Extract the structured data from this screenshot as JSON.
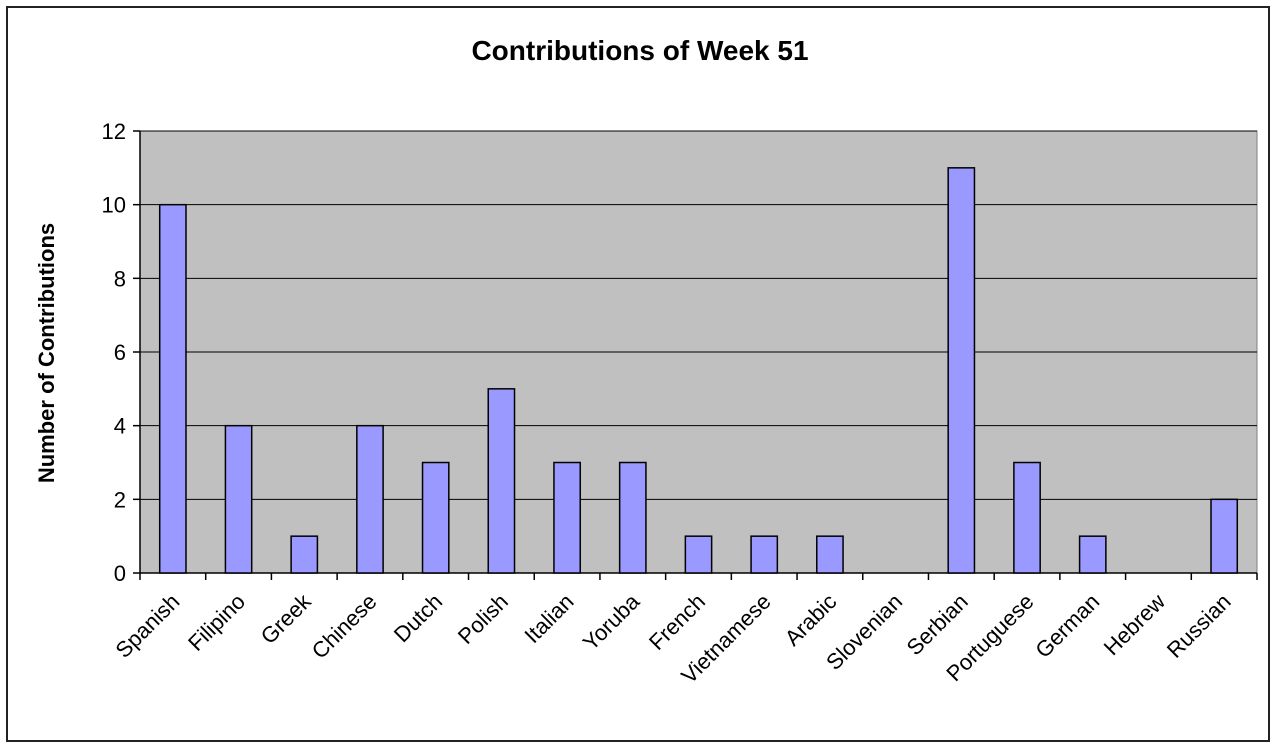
{
  "chart_data": {
    "type": "bar",
    "title": "Contributions of Week 51",
    "xlabel": "",
    "ylabel": "Number of Contributions",
    "categories": [
      "Spanish",
      "Filipino",
      "Greek",
      "Chinese",
      "Dutch",
      "Polish",
      "Italian",
      "Yoruba",
      "French",
      "Vietnamese",
      "Arabic",
      "Slovenian",
      "Serbian",
      "Portuguese",
      "German",
      "Hebrew",
      "Russian"
    ],
    "values": [
      10,
      4,
      1,
      4,
      3,
      5,
      3,
      3,
      1,
      1,
      1,
      0,
      11,
      3,
      1,
      0,
      2
    ],
    "ylim": [
      0,
      12
    ],
    "yticks": [
      0,
      2,
      4,
      6,
      8,
      10,
      12
    ],
    "grid": true,
    "legend": "none",
    "colors": {
      "bar_fill": "#9999ff",
      "bar_stroke": "#000000",
      "plot_background": "#c0c0c0",
      "gridline": "#000000"
    }
  }
}
